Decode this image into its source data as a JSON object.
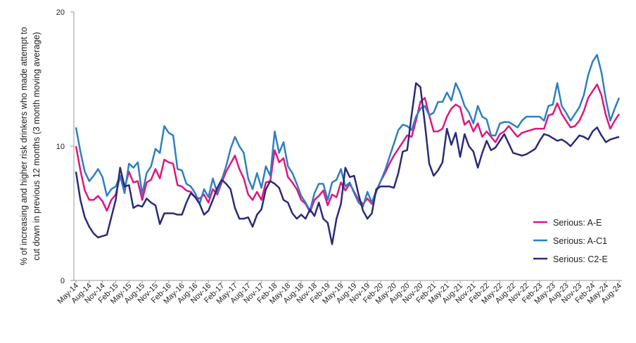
{
  "chart_data": {
    "type": "line",
    "ylabel": [
      "% of increasing and higher risk drinkers who made attempt to",
      "cut down in previous 12 months (3 month moving average)"
    ],
    "categories": [
      "May-14",
      null,
      null,
      "Aug-14",
      null,
      null,
      "Nov-14",
      null,
      null,
      "Feb-15",
      null,
      null,
      "May-15",
      null,
      null,
      "Aug-15",
      null,
      null,
      "Nov-15",
      null,
      null,
      "Feb-16",
      null,
      null,
      "May-16",
      null,
      null,
      "Aug-16",
      null,
      null,
      "Nov-16",
      null,
      null,
      "Feb-17",
      null,
      null,
      "May-17",
      null,
      null,
      "Aug-17",
      null,
      null,
      "Nov-17",
      null,
      null,
      "Feb-18",
      null,
      null,
      "May-18",
      null,
      null,
      "Aug-18",
      null,
      null,
      "Nov-18",
      null,
      null,
      "Feb-19",
      null,
      null,
      "May-19",
      null,
      null,
      "Aug-19",
      null,
      null,
      "Nov-19",
      null,
      null,
      "Feb-20",
      null,
      null,
      "May-20",
      null,
      null,
      "Aug-20",
      null,
      null,
      "Nov-20",
      null,
      null,
      "Feb-21",
      null,
      null,
      "May-21",
      null,
      null,
      "Aug-21",
      null,
      null,
      "Nov-21",
      null,
      null,
      "Feb-22",
      null,
      null,
      "May-22",
      null,
      null,
      "Aug-22",
      null,
      null,
      "Nov-22",
      null,
      null,
      "Feb-23",
      null,
      null,
      "May-23",
      null,
      null,
      "Aug-23",
      null,
      null,
      "Nov-23",
      null,
      null,
      "Feb-24",
      null,
      null,
      "May-24",
      null,
      null,
      "Aug-24"
    ],
    "series": [
      {
        "name": "Serious: A-E",
        "color": "#e0157f",
        "values": [
          10.0,
          8.2,
          6.7,
          6.0,
          6.0,
          6.3,
          5.9,
          5.2,
          6.0,
          6.4,
          7.8,
          6.9,
          8.1,
          7.3,
          7.4,
          6.0,
          7.3,
          7.5,
          8.3,
          7.6,
          9.0,
          8.8,
          8.7,
          7.1,
          7.0,
          6.7,
          6.6,
          6.2,
          6.1,
          6.4,
          5.8,
          6.8,
          6.4,
          7.3,
          8.1,
          8.7,
          9.3,
          8.3,
          7.6,
          6.4,
          6.0,
          6.6,
          6.0,
          7.3,
          7.4,
          9.7,
          8.8,
          9.1,
          7.7,
          7.3,
          6.8,
          6.0,
          5.7,
          5.1,
          6.0,
          6.3,
          6.7,
          5.6,
          6.4,
          6.2,
          7.3,
          6.7,
          7.2,
          6.6,
          6.0,
          5.7,
          6.1,
          5.7,
          6.6,
          7.4,
          8.0,
          8.7,
          9.3,
          9.8,
          10.3,
          10.8,
          10.7,
          11.9,
          13.3,
          13.6,
          12.3,
          11.1,
          11.1,
          11.3,
          12.2,
          12.8,
          13.1,
          12.9,
          11.6,
          11.9,
          11.1,
          11.7,
          10.7,
          11.1,
          10.7,
          10.3,
          10.9,
          11.1,
          11.5,
          11.1,
          10.7,
          11.0,
          11.1,
          11.2,
          11.3,
          11.3,
          11.3,
          12.3,
          12.4,
          13.2,
          12.4,
          11.9,
          11.4,
          11.5,
          11.9,
          12.6,
          13.6,
          14.1,
          14.6,
          13.8,
          12.3,
          11.3,
          11.9,
          12.4
        ]
      },
      {
        "name": "Serious: A-C1",
        "color": "#2e7fc1",
        "values": [
          11.4,
          9.6,
          8.1,
          7.4,
          7.8,
          8.3,
          7.7,
          6.3,
          6.8,
          7.0,
          7.8,
          6.5,
          8.7,
          8.4,
          8.8,
          6.4,
          8.0,
          8.5,
          9.8,
          9.5,
          11.5,
          11.0,
          10.8,
          8.3,
          8.2,
          7.2,
          7.0,
          6.5,
          5.7,
          6.8,
          6.2,
          7.6,
          6.5,
          7.5,
          8.5,
          9.8,
          10.7,
          10.0,
          9.5,
          7.6,
          6.8,
          8.0,
          6.9,
          8.5,
          7.8,
          11.1,
          9.5,
          10.3,
          8.5,
          8.0,
          7.2,
          6.3,
          5.8,
          5.2,
          6.5,
          7.2,
          7.2,
          6.0,
          7.3,
          7.5,
          8.3,
          7.0,
          7.3,
          6.5,
          5.8,
          5.5,
          6.6,
          5.8,
          6.7,
          7.4,
          8.2,
          9.2,
          10.2,
          11.2,
          11.6,
          11.5,
          11.2,
          12.2,
          12.8,
          13.0,
          12.3,
          12.5,
          13.3,
          13.3,
          14.0,
          13.4,
          14.7,
          14.0,
          13.0,
          12.5,
          11.7,
          13.0,
          12.2,
          12.0,
          10.8,
          10.8,
          11.7,
          11.8,
          11.8,
          11.6,
          11.4,
          11.9,
          12.2,
          12.2,
          12.2,
          12.2,
          11.9,
          13.0,
          13.1,
          14.7,
          13.0,
          12.5,
          11.9,
          12.4,
          12.9,
          13.8,
          15.3,
          16.3,
          16.8,
          15.5,
          13.5,
          11.9,
          12.8,
          13.6
        ]
      },
      {
        "name": "Serious: C2-E",
        "color": "#2b2a7a",
        "values": [
          8.1,
          6.0,
          4.7,
          4.0,
          3.5,
          3.2,
          3.3,
          3.4,
          4.7,
          6.0,
          8.4,
          7.0,
          7.1,
          5.4,
          5.6,
          5.5,
          6.1,
          5.8,
          5.6,
          4.2,
          5.0,
          5.0,
          5.0,
          4.9,
          4.9,
          5.8,
          6.5,
          6.2,
          5.7,
          4.9,
          5.2,
          6.0,
          6.9,
          7.5,
          7.2,
          6.8,
          5.4,
          4.6,
          4.6,
          4.7,
          4.0,
          4.9,
          5.3,
          6.8,
          7.4,
          7.2,
          6.9,
          6.0,
          5.8,
          5.0,
          4.6,
          4.9,
          4.6,
          5.3,
          4.8,
          5.8,
          4.6,
          4.3,
          2.7,
          4.6,
          5.7,
          8.4,
          7.7,
          7.8,
          6.4,
          5.2,
          4.6,
          5.0,
          6.8,
          7.0,
          7.0,
          7.0,
          6.9,
          8.0,
          9.6,
          9.7,
          12.3,
          14.7,
          14.4,
          11.7,
          8.7,
          7.8,
          8.2,
          8.8,
          11.3,
          10.1,
          11.0,
          9.2,
          10.9,
          10.0,
          9.6,
          8.4,
          9.5,
          10.4,
          9.7,
          9.9,
          10.4,
          10.9,
          10.2,
          9.5,
          9.4,
          9.3,
          9.4,
          9.6,
          9.8,
          10.4,
          10.9,
          10.8,
          10.6,
          10.4,
          10.5,
          10.3,
          10.0,
          10.4,
          10.8,
          10.7,
          10.5,
          11.1,
          11.4,
          10.8,
          10.3,
          10.5,
          10.6,
          10.7
        ]
      }
    ],
    "ylim": [
      0,
      20
    ],
    "yticks": [
      0,
      10,
      20
    ],
    "grid": false,
    "legend": "lower right"
  }
}
